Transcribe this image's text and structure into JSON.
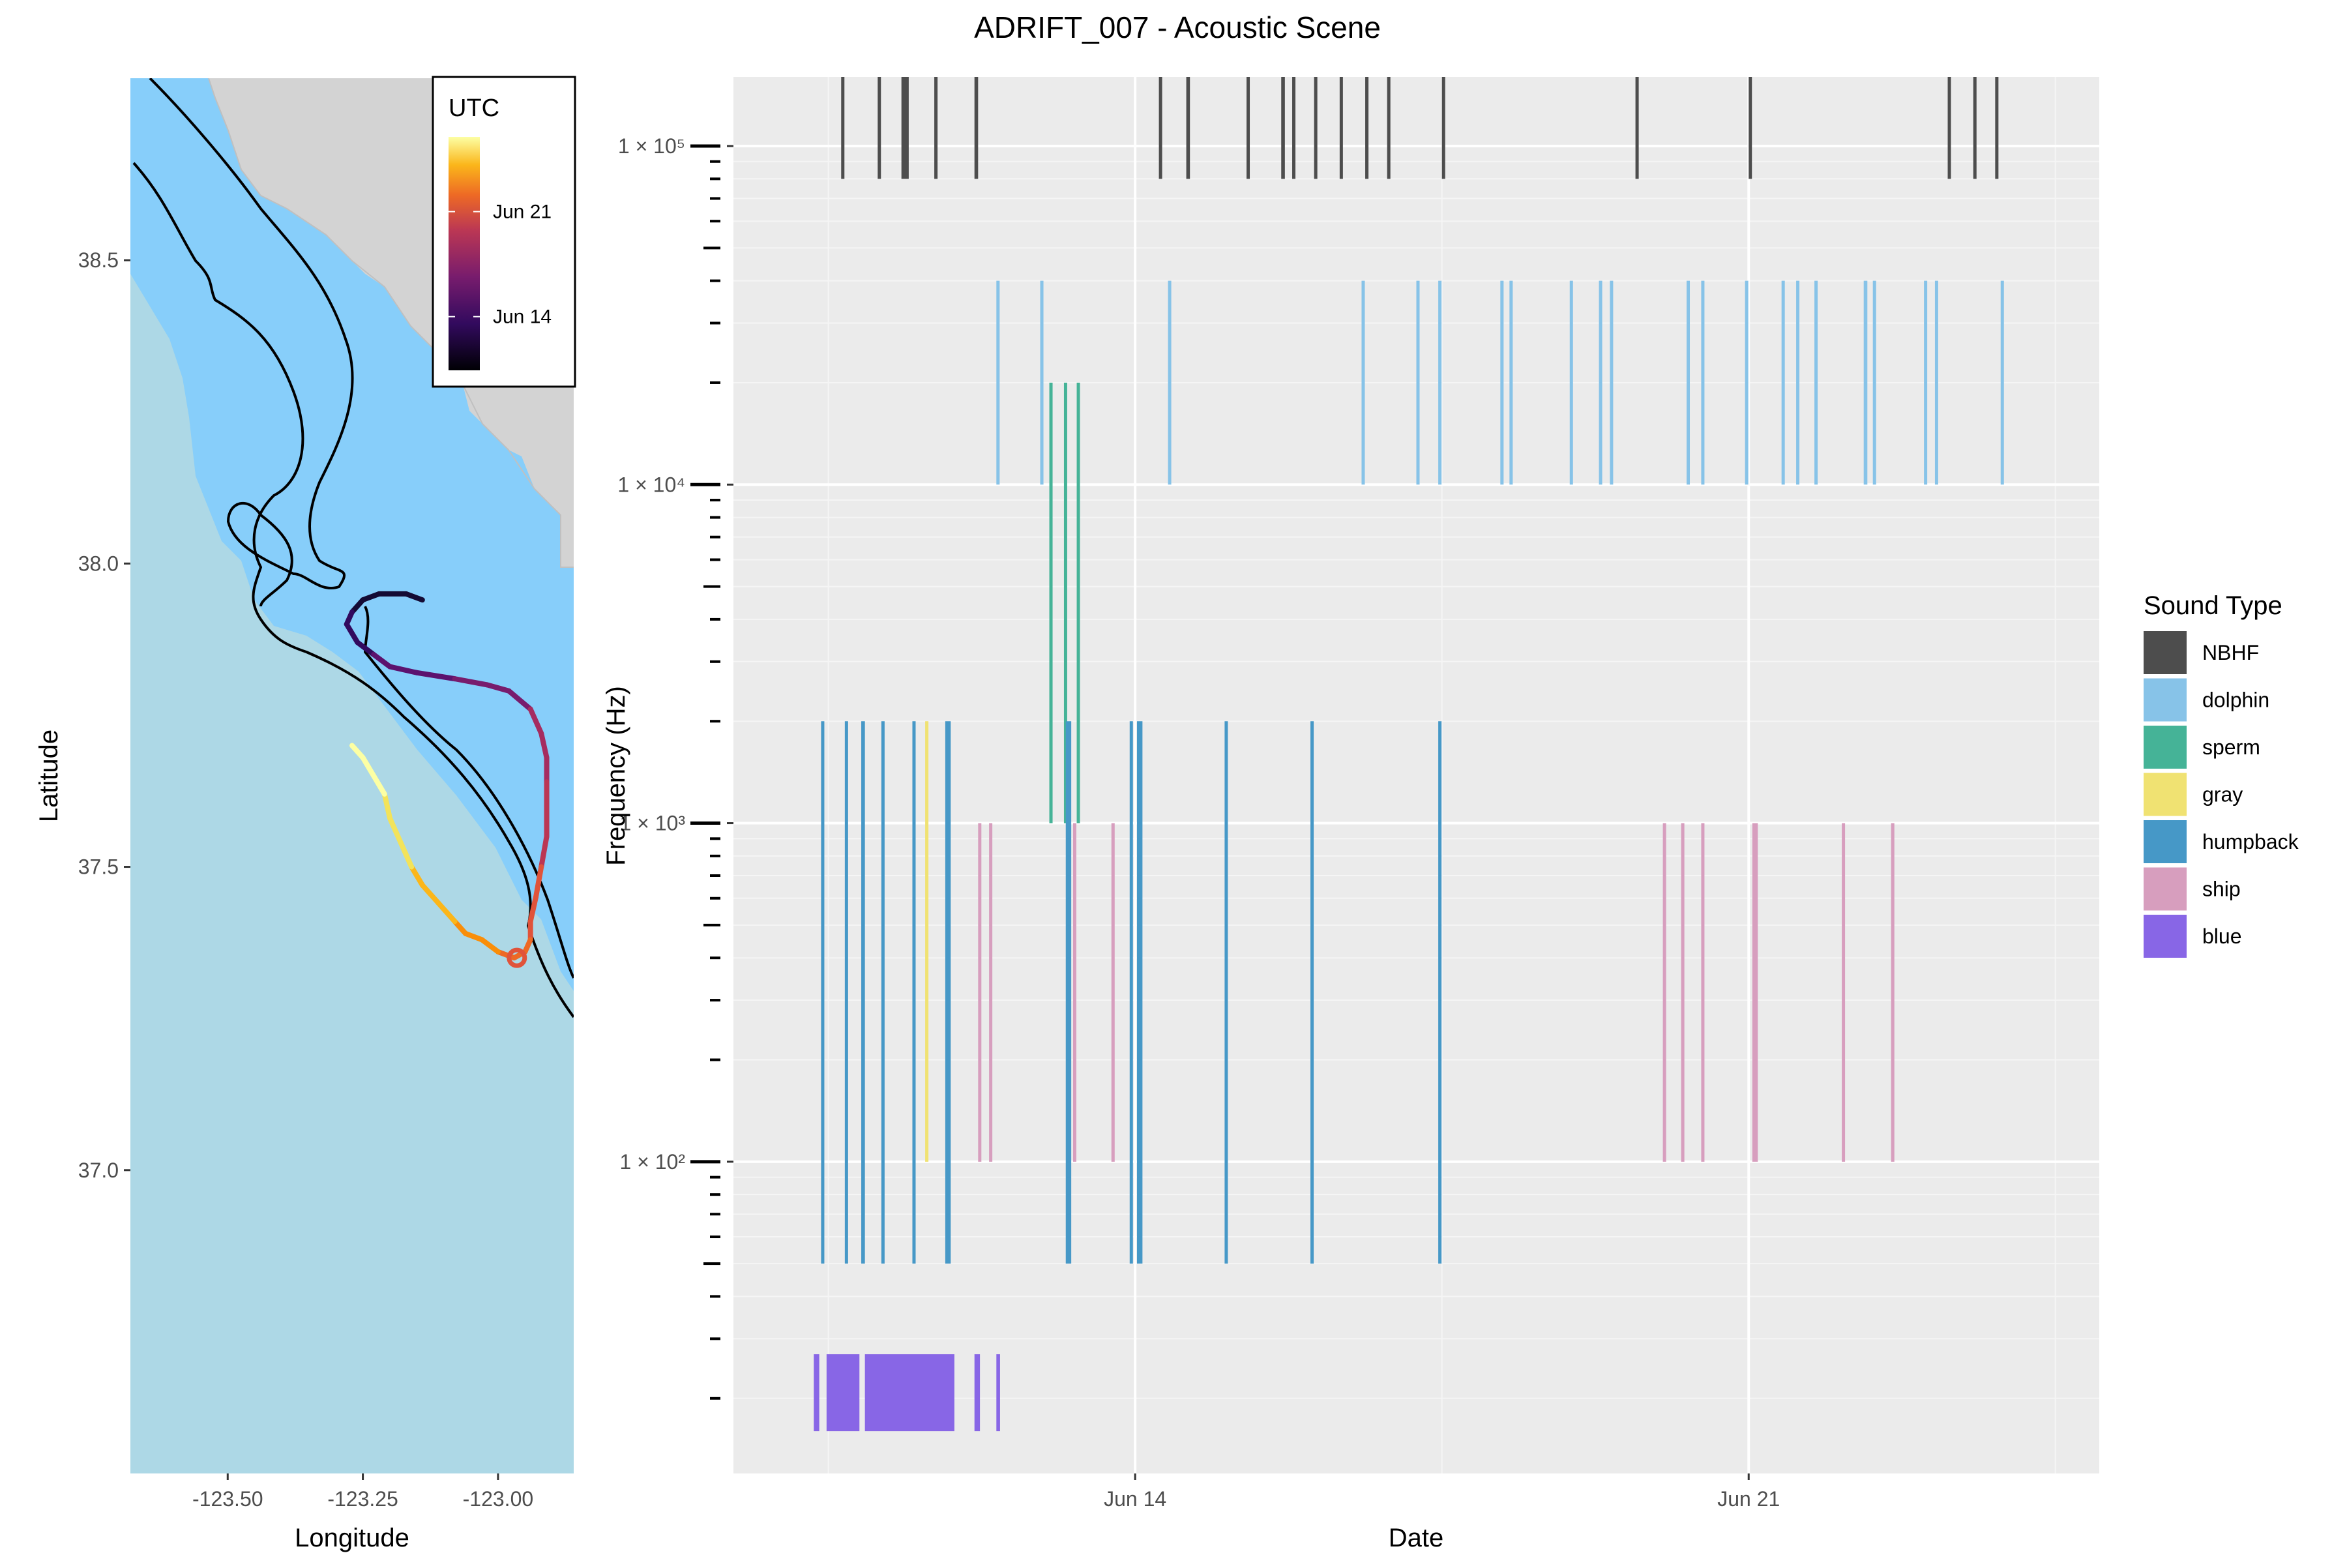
{
  "title": "ADRIFT_007 - Acoustic Scene",
  "map": {
    "xlabel": "Longitude",
    "ylabel": "Latitude",
    "xlim": [
      -123.68,
      -122.86
    ],
    "ylim": [
      36.5,
      38.8
    ],
    "xticks": [
      -123.5,
      -123.25,
      -123.0
    ],
    "xtick_labels": [
      "-123.50",
      "-123.25",
      "-123.00"
    ],
    "yticks": [
      37.0,
      37.5,
      38.0,
      38.5
    ],
    "ytick_labels": [
      "37.0",
      "37.5",
      "38.0",
      "38.5"
    ],
    "colors": {
      "ocean": "#add8e6",
      "shelf": "#87cefa",
      "land": "#d3d3d3",
      "contour": "#000000"
    },
    "colorbar": {
      "title": "UTC",
      "labels": [
        "Jun 21",
        "Jun 14"
      ],
      "label_fractions": [
        0.68,
        0.23
      ]
    },
    "track": [
      [
        -123.14,
        37.94
      ],
      [
        -123.17,
        37.95
      ],
      [
        -123.22,
        37.95
      ],
      [
        -123.25,
        37.94
      ],
      [
        -123.27,
        37.92
      ],
      [
        -123.28,
        37.9
      ],
      [
        -123.26,
        37.87
      ],
      [
        -123.23,
        37.85
      ],
      [
        -123.2,
        37.83
      ],
      [
        -123.15,
        37.82
      ],
      [
        -123.08,
        37.81
      ],
      [
        -123.02,
        37.8
      ],
      [
        -122.98,
        37.79
      ],
      [
        -122.94,
        37.76
      ],
      [
        -122.92,
        37.72
      ],
      [
        -122.91,
        37.68
      ],
      [
        -122.91,
        37.64
      ],
      [
        -122.91,
        37.6
      ],
      [
        -122.91,
        37.55
      ],
      [
        -122.92,
        37.5
      ],
      [
        -122.93,
        37.45
      ],
      [
        -122.94,
        37.41
      ],
      [
        -122.94,
        37.38
      ],
      [
        -122.95,
        37.36
      ],
      [
        -122.97,
        37.35
      ],
      [
        -123.0,
        37.36
      ],
      [
        -123.03,
        37.38
      ],
      [
        -123.06,
        37.39
      ],
      [
        -123.08,
        37.41
      ],
      [
        -123.11,
        37.44
      ],
      [
        -123.14,
        37.47
      ],
      [
        -123.16,
        37.5
      ],
      [
        -123.18,
        37.54
      ],
      [
        -123.2,
        37.58
      ],
      [
        -123.21,
        37.62
      ],
      [
        -123.23,
        37.65
      ],
      [
        -123.25,
        37.68
      ],
      [
        -123.27,
        37.7
      ]
    ]
  },
  "chart_data": {
    "type": "bar",
    "xlabel": "Date",
    "ylabel": "Frequency (Hz)",
    "yscale": "log",
    "ylim": [
      12,
      160000
    ],
    "xlim": [
      "2022-06-09T10:00",
      "2022-06-25T00:00"
    ],
    "x_ticks": [
      "2022-06-14",
      "2022-06-21"
    ],
    "x_tick_labels": [
      "Jun 14",
      "Jun 21"
    ],
    "y_ticks": [
      100,
      1000,
      10000,
      100000
    ],
    "y_tick_labels": [
      "1 × 10²",
      "1 × 10³",
      "1 × 10⁴",
      "1 × 10⁵"
    ],
    "legend_title": "Sound Type",
    "legend_position": "right",
    "series": [
      {
        "name": "NBHF",
        "color": "#4d4d4d",
        "freq_range": [
          80000,
          160000
        ],
        "detections": [
          [
            "2022-06-10T15:30",
            "2022-06-10T16:10"
          ],
          [
            "2022-06-11T01:30",
            "2022-06-11T02:00"
          ],
          [
            "2022-06-11T08:00",
            "2022-06-11T10:00"
          ],
          [
            "2022-06-11T17:00",
            "2022-06-11T17:40"
          ],
          [
            "2022-06-12T04:00",
            "2022-06-12T05:00"
          ],
          [
            "2022-06-14T06:30",
            "2022-06-14T07:00"
          ],
          [
            "2022-06-14T14:00",
            "2022-06-14T15:00"
          ],
          [
            "2022-06-15T06:30",
            "2022-06-15T07:00"
          ],
          [
            "2022-06-15T16:00",
            "2022-06-15T17:00"
          ],
          [
            "2022-06-15T19:00",
            "2022-06-15T19:40"
          ],
          [
            "2022-06-16T01:00",
            "2022-06-16T01:40"
          ],
          [
            "2022-06-16T08:00",
            "2022-06-16T08:40"
          ],
          [
            "2022-06-16T15:00",
            "2022-06-16T15:40"
          ],
          [
            "2022-06-16T21:00",
            "2022-06-16T21:40"
          ],
          [
            "2022-06-17T12:00",
            "2022-06-17T12:40"
          ],
          [
            "2022-06-19T17:00",
            "2022-06-19T17:40"
          ],
          [
            "2022-06-21T00:00",
            "2022-06-21T00:40"
          ],
          [
            "2022-06-23T06:30",
            "2022-06-23T07:10"
          ],
          [
            "2022-06-23T13:30",
            "2022-06-23T14:10"
          ],
          [
            "2022-06-23T19:30",
            "2022-06-23T20:10"
          ]
        ]
      },
      {
        "name": "dolphin",
        "color": "#87c3e8",
        "freq_range": [
          10000,
          40000
        ],
        "detections": [
          [
            "2022-06-12T10:00",
            "2022-06-12T10:30"
          ],
          [
            "2022-06-12T22:00",
            "2022-06-12T22:30"
          ],
          [
            "2022-06-14T09:00",
            "2022-06-14T09:30"
          ],
          [
            "2022-06-16T14:00",
            "2022-06-16T14:30"
          ],
          [
            "2022-06-17T05:00",
            "2022-06-17T05:30"
          ],
          [
            "2022-06-17T11:00",
            "2022-06-17T11:30"
          ],
          [
            "2022-06-18T04:00",
            "2022-06-18T04:30"
          ],
          [
            "2022-06-18T06:30",
            "2022-06-18T07:00"
          ],
          [
            "2022-06-18T23:00",
            "2022-06-18T23:30"
          ],
          [
            "2022-06-19T07:00",
            "2022-06-19T07:30"
          ],
          [
            "2022-06-19T10:00",
            "2022-06-19T10:30"
          ],
          [
            "2022-06-20T07:00",
            "2022-06-20T07:30"
          ],
          [
            "2022-06-20T11:00",
            "2022-06-20T11:30"
          ],
          [
            "2022-06-20T23:00",
            "2022-06-20T23:30"
          ],
          [
            "2022-06-21T09:00",
            "2022-06-21T09:30"
          ],
          [
            "2022-06-21T13:00",
            "2022-06-21T13:30"
          ],
          [
            "2022-06-21T18:00",
            "2022-06-21T18:30"
          ],
          [
            "2022-06-22T07:30",
            "2022-06-22T08:30"
          ],
          [
            "2022-06-22T10:00",
            "2022-06-22T10:30"
          ],
          [
            "2022-06-23T00:00",
            "2022-06-23T00:30"
          ],
          [
            "2022-06-23T03:00",
            "2022-06-23T03:30"
          ],
          [
            "2022-06-23T21:00",
            "2022-06-23T21:30"
          ]
        ]
      },
      {
        "name": "sperm",
        "color": "#45b397",
        "freq_range": [
          1000,
          20000
        ],
        "detections": [
          [
            "2022-06-13T00:30",
            "2022-06-13T01:00"
          ],
          [
            "2022-06-13T04:30",
            "2022-06-13T05:00"
          ],
          [
            "2022-06-13T08:00",
            "2022-06-13T08:30"
          ]
        ]
      },
      {
        "name": "gray",
        "color": "#f0e272",
        "freq_range": [
          100,
          2000
        ],
        "detections": [
          [
            "2022-06-11T14:30",
            "2022-06-11T15:00"
          ]
        ]
      },
      {
        "name": "humpback",
        "color": "#4698c7",
        "freq_range": [
          50,
          2000
        ],
        "detections": [
          [
            "2022-06-10T10:00",
            "2022-06-10T10:40"
          ],
          [
            "2022-06-10T16:30",
            "2022-06-10T17:10"
          ],
          [
            "2022-06-10T21:00",
            "2022-06-10T22:00"
          ],
          [
            "2022-06-11T02:30",
            "2022-06-11T03:10"
          ],
          [
            "2022-06-11T11:00",
            "2022-06-11T11:40"
          ],
          [
            "2022-06-11T20:00",
            "2022-06-11T21:30"
          ],
          [
            "2022-06-13T05:00",
            "2022-06-13T06:30"
          ],
          [
            "2022-06-13T22:30",
            "2022-06-13T23:10"
          ],
          [
            "2022-06-14T00:30",
            "2022-06-14T02:00"
          ],
          [
            "2022-06-15T00:30",
            "2022-06-15T01:10"
          ],
          [
            "2022-06-16T00:00",
            "2022-06-16T00:40"
          ],
          [
            "2022-06-17T11:00",
            "2022-06-17T11:40"
          ]
        ]
      },
      {
        "name": "ship",
        "color": "#d79ebe",
        "freq_range": [
          100,
          1000
        ],
        "detections": [
          [
            "2022-06-12T05:00",
            "2022-06-12T05:40"
          ],
          [
            "2022-06-12T08:00",
            "2022-06-12T08:40"
          ],
          [
            "2022-06-13T07:00",
            "2022-06-13T07:40"
          ],
          [
            "2022-06-13T17:30",
            "2022-06-13T18:10"
          ],
          [
            "2022-06-20T00:30",
            "2022-06-20T01:10"
          ],
          [
            "2022-06-20T05:30",
            "2022-06-20T06:10"
          ],
          [
            "2022-06-20T11:00",
            "2022-06-20T11:40"
          ],
          [
            "2022-06-21T01:00",
            "2022-06-21T02:30"
          ],
          [
            "2022-06-22T01:30",
            "2022-06-22T02:10"
          ],
          [
            "2022-06-22T15:00",
            "2022-06-22T15:40"
          ]
        ]
      },
      {
        "name": "blue",
        "color": "#8866e6",
        "freq_range": [
          16,
          27
        ],
        "detections": [
          [
            "2022-06-10T08:00",
            "2022-06-10T09:30"
          ],
          [
            "2022-06-10T11:30",
            "2022-06-10T20:30"
          ],
          [
            "2022-06-10T22:00",
            "2022-06-11T22:30"
          ],
          [
            "2022-06-12T04:00",
            "2022-06-12T05:30"
          ],
          [
            "2022-06-12T10:00",
            "2022-06-12T11:00"
          ]
        ]
      }
    ]
  }
}
